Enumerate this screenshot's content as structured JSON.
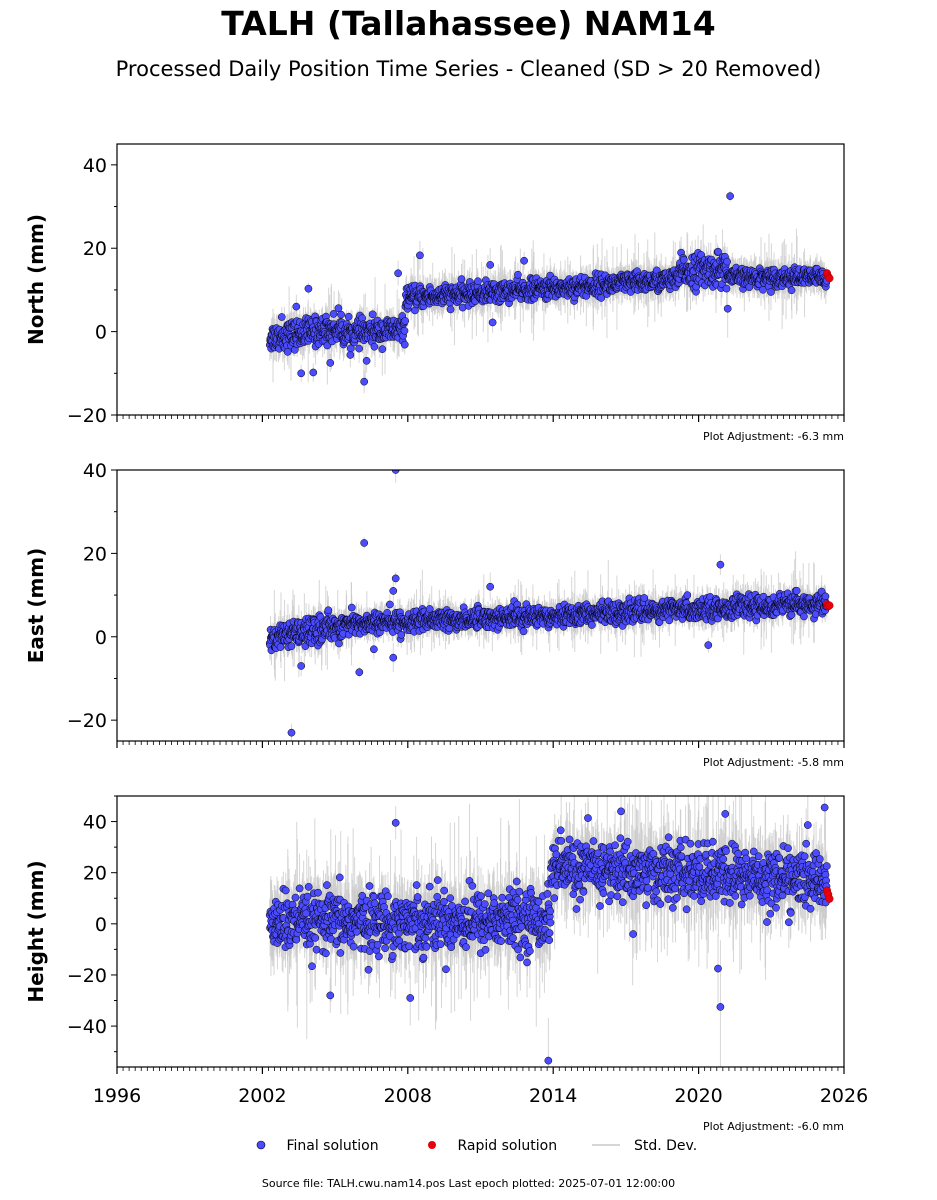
{
  "title": "TALH (Tallahassee) NAM14",
  "subtitle": "Processed Daily Position Time Series - Cleaned (SD > 20 Removed)",
  "source": "Source file: TALH.cwu.nam14.pos  Last epoch plotted: 2025-07-01 12:00:00",
  "legend": {
    "final": "Final solution",
    "rapid": "Rapid solution",
    "stddev": "Std. Dev."
  },
  "colors": {
    "final": "#4b4bff",
    "rapid": "#e8000b",
    "stddev": "#c8c8c8",
    "marker_edge": "#000000"
  },
  "chart_data": [
    {
      "type": "scatter",
      "ylabel": "North (mm)",
      "xlim": [
        1996,
        2026
      ],
      "ylim": [
        -20,
        45
      ],
      "yticks": [
        -20,
        0,
        20,
        40
      ],
      "adjustment": "Plot Adjustment: -6.3 mm",
      "segments": [
        {
          "from": 2002.3,
          "to": 2005.3,
          "start": -1.5,
          "end": 1.0,
          "noise": 2.2
        },
        {
          "from": 2005.3,
          "to": 2007.9,
          "start": -0.5,
          "end": 0.5,
          "noise": 2.0
        },
        {
          "from": 2007.9,
          "to": 2019.2,
          "start": 8.0,
          "end": 12.5,
          "noise": 1.6
        },
        {
          "from": 2019.2,
          "to": 2021.2,
          "start": 14.5,
          "end": 15.0,
          "noise": 2.6
        },
        {
          "from": 2021.2,
          "to": 2025.3,
          "start": 13.0,
          "end": 13.0,
          "noise": 1.4
        }
      ],
      "outliers": [
        [
          2002.8,
          3.5
        ],
        [
          2003.4,
          6.0
        ],
        [
          2003.6,
          -10.0
        ],
        [
          2004.1,
          -9.8
        ],
        [
          2003.9,
          10.3
        ],
        [
          2004.8,
          -7.5
        ],
        [
          2006.2,
          -12.0
        ],
        [
          2006.3,
          -7.0
        ],
        [
          2007.6,
          14.0
        ],
        [
          2008.5,
          18.3
        ],
        [
          2011.5,
          2.2
        ],
        [
          2011.4,
          16.0
        ],
        [
          2012.8,
          17.0
        ],
        [
          2021.3,
          32.5
        ],
        [
          2021.2,
          5.5
        ]
      ],
      "rapid": [
        [
          2025.3,
          14.0
        ],
        [
          2025.35,
          13.2
        ],
        [
          2025.4,
          12.8
        ]
      ]
    },
    {
      "type": "scatter",
      "ylabel": "East (mm)",
      "xlim": [
        1996,
        2026
      ],
      "ylim": [
        -25,
        40
      ],
      "yticks": [
        -20,
        0,
        20,
        40
      ],
      "adjustment": "Plot Adjustment: -5.8 mm",
      "segments": [
        {
          "from": 2002.3,
          "to": 2005.5,
          "start": -0.5,
          "end": 3.0,
          "noise": 2.0
        },
        {
          "from": 2005.5,
          "to": 2025.3,
          "start": 3.0,
          "end": 8.0,
          "noise": 1.6
        }
      ],
      "outliers": [
        [
          2003.2,
          -23.0
        ],
        [
          2006.2,
          22.5
        ],
        [
          2007.5,
          40.0
        ],
        [
          2007.5,
          14.0
        ],
        [
          2007.4,
          11.0
        ],
        [
          2006.0,
          -8.5
        ],
        [
          2007.4,
          -5.0
        ],
        [
          2006.6,
          -3.0
        ],
        [
          2011.4,
          12.0
        ],
        [
          2020.9,
          17.3
        ],
        [
          2020.4,
          -2.0
        ],
        [
          2003.6,
          -7.0
        ]
      ],
      "rapid": [
        [
          2025.3,
          7.8
        ],
        [
          2025.35,
          7.3
        ],
        [
          2025.4,
          7.5
        ]
      ]
    },
    {
      "type": "scatter",
      "ylabel": "Height (mm)",
      "xlim": [
        1996,
        2026
      ],
      "ylim": [
        -56,
        50
      ],
      "yticks": [
        -40,
        -20,
        0,
        20,
        40
      ],
      "xticks": [
        1996,
        2002,
        2008,
        2014,
        2020,
        2026
      ],
      "adjustment": "Plot Adjustment: -6.0 mm",
      "segments": [
        {
          "from": 2002.3,
          "to": 2013.9,
          "start": 0.0,
          "end": 2.0,
          "noise": 7.5
        },
        {
          "from": 2013.9,
          "to": 2025.3,
          "start": 22.0,
          "end": 17.0,
          "noise": 7.5
        }
      ],
      "outliers": [
        [
          2013.8,
          -53.5
        ],
        [
          2007.5,
          39.5
        ],
        [
          2008.1,
          -29.0
        ],
        [
          2016.8,
          44.0
        ],
        [
          2020.9,
          -32.5
        ],
        [
          2020.8,
          -17.5
        ],
        [
          2025.2,
          45.5
        ],
        [
          2021.1,
          43.0
        ],
        [
          2017.3,
          -4.0
        ],
        [
          2004.8,
          -28.0
        ]
      ],
      "rapid": [
        [
          2025.3,
          13.0
        ],
        [
          2025.35,
          11.5
        ],
        [
          2025.4,
          9.8
        ]
      ]
    }
  ]
}
